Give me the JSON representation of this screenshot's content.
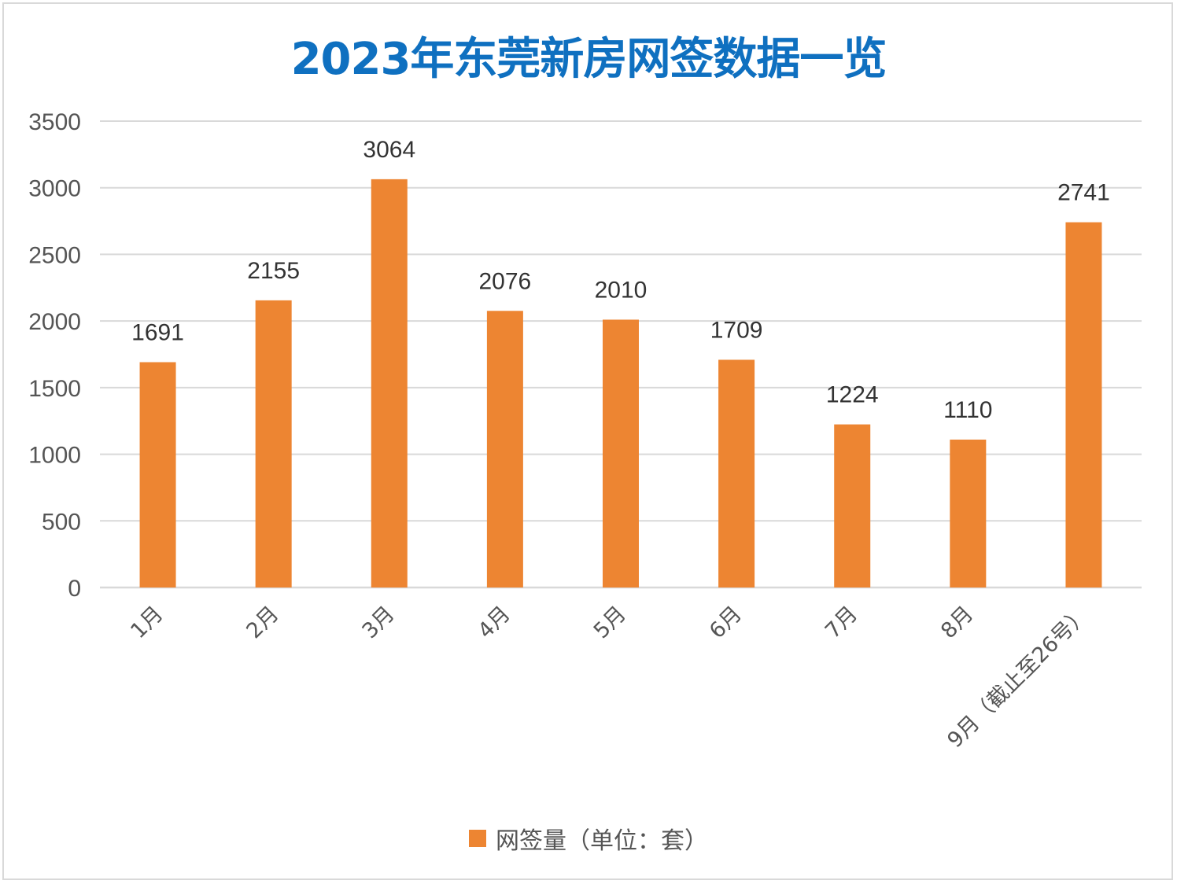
{
  "chart_data": {
    "type": "bar",
    "title": "2023年东莞新房网签数据一览",
    "categories": [
      "1月",
      "2月",
      "3月",
      "4月",
      "5月",
      "6月",
      "7月",
      "8月",
      "9月（截止至26号）"
    ],
    "series": [
      {
        "name": "网签量（单位：套）",
        "values": [
          1691,
          2155,
          3064,
          2076,
          2010,
          1709,
          1224,
          1110,
          2741
        ]
      }
    ],
    "ylim": [
      0,
      3500
    ],
    "yticks": [
      0,
      500,
      1000,
      1500,
      2000,
      2500,
      3000,
      3500
    ],
    "grid": true,
    "legend_position": "bottom",
    "data_labels": true
  },
  "colors": {
    "bar": "#ed8532",
    "title": "#0f70c0",
    "grid": "#d9d9d9"
  }
}
